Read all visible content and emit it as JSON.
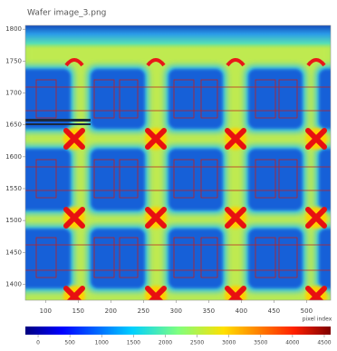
{
  "chart_data": {
    "type": "heatmap",
    "title": "Wafer image_3.png",
    "x_label": "pixel index",
    "xlim": [
      69,
      537
    ],
    "xticks": [
      100,
      150,
      200,
      250,
      300,
      350,
      400,
      450,
      500
    ],
    "ylim": [
      1375,
      1806
    ],
    "yticks": [
      1800,
      1750,
      1700,
      1650,
      1600,
      1550,
      1500,
      1450,
      1400
    ],
    "colorbar": {
      "lim": [
        -200,
        4600
      ],
      "ticks": [
        0,
        500,
        1000,
        1500,
        2000,
        2500,
        3000,
        3500,
        4000,
        4500
      ]
    }
  }
}
